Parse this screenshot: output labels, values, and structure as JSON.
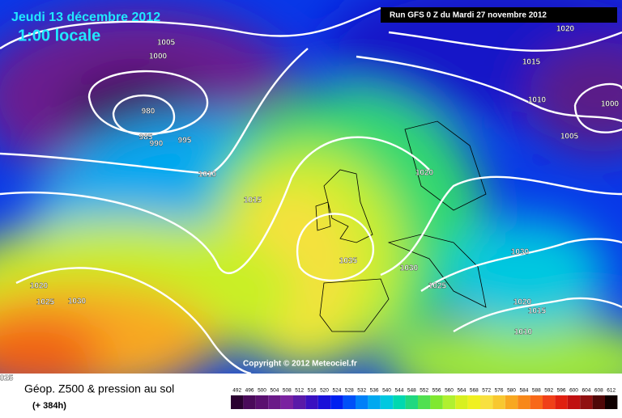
{
  "header": {
    "date": "Jeudi 13 décembre 2012",
    "time": "1:00 locale",
    "run": "Run GFS 0 Z du Mardi 27 novembre 2012"
  },
  "isobar_labels": [
    1005,
    1000,
    980,
    985,
    990,
    995,
    1010,
    1015,
    1020,
    1025,
    1030,
    1035,
    1030,
    1025,
    1020,
    1030,
    1020,
    1015,
    1010,
    1005,
    1010,
    1015,
    1020,
    1000,
    "025"
  ],
  "copyright": "Copyright © 2012 Meteociel.fr",
  "legend": {
    "title": "Géop. Z500 & pression au sol",
    "lead": "(+ 384h)",
    "scale": [
      492,
      496,
      500,
      504,
      508,
      512,
      516,
      520,
      524,
      528,
      532,
      536,
      540,
      544,
      548,
      552,
      556,
      560,
      564,
      568,
      572,
      576,
      580,
      584,
      588,
      592,
      596,
      600,
      604,
      608,
      612
    ],
    "colors": [
      "#2a0030",
      "#4a0a5a",
      "#5a1070",
      "#6a1a88",
      "#7a22a0",
      "#5a1aa8",
      "#3a10c0",
      "#1a10d8",
      "#0020f0",
      "#0050f8",
      "#0080f8",
      "#00a8f0",
      "#00c8e0",
      "#00d8b0",
      "#20d880",
      "#50e050",
      "#80e830",
      "#b0f030",
      "#d8f020",
      "#f0f020",
      "#f8e040",
      "#f8c830",
      "#f8a820",
      "#f88818",
      "#f86818",
      "#f04018",
      "#e02010",
      "#c01010",
      "#901010",
      "#500808",
      "#100000"
    ]
  }
}
